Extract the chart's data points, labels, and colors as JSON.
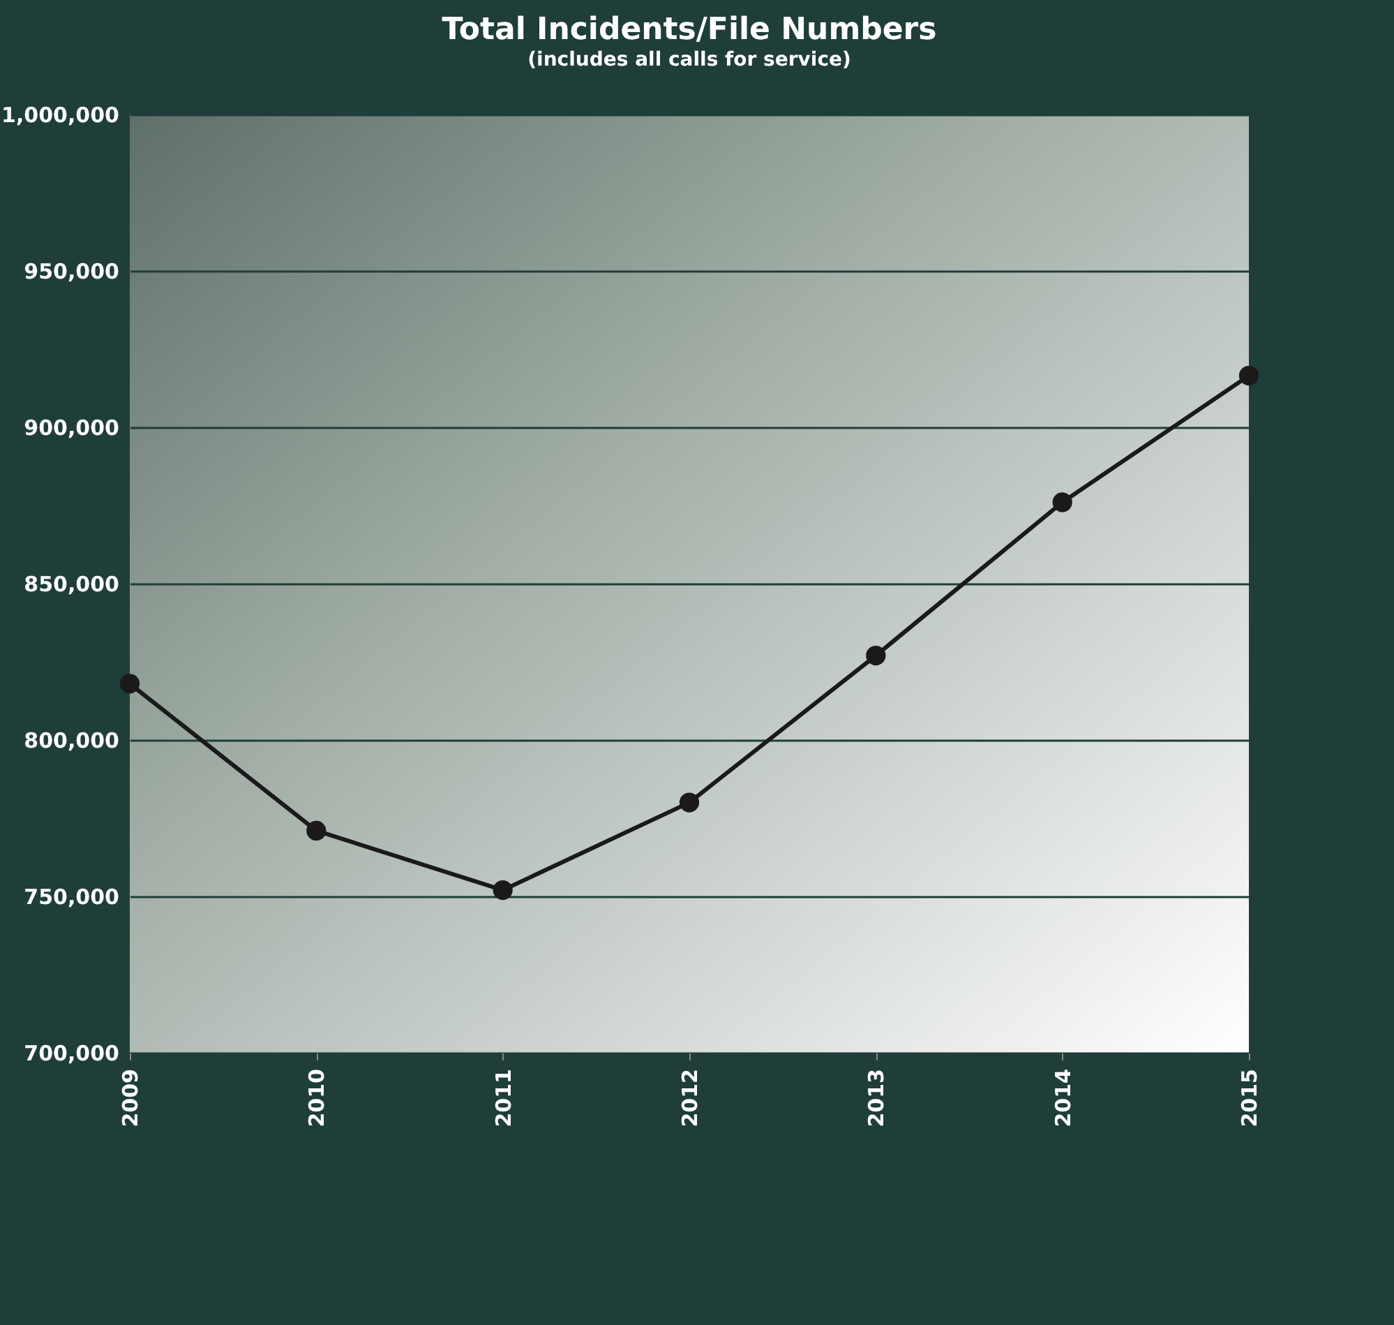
{
  "chart_data": {
    "type": "line",
    "title": "Total Incidents/File Numbers",
    "subtitle": "(includes all calls for service)",
    "categories": [
      "2009",
      "2010",
      "2011",
      "2012",
      "2013",
      "2014",
      "2015"
    ],
    "series": [
      {
        "color": "#1a1a1a",
        "values": [
          818000,
          771000,
          752000,
          780000,
          827000,
          876000,
          916500
        ]
      }
    ],
    "ylim": [
      700000,
      1000000
    ],
    "yticks": [
      {
        "value": 700000,
        "label": "700,000"
      },
      {
        "value": 750000,
        "label": "750,000"
      },
      {
        "value": 800000,
        "label": "800,000"
      },
      {
        "value": 850000,
        "label": "850,000"
      },
      {
        "value": 900000,
        "label": "900,000"
      },
      {
        "value": 950000,
        "label": "950,000"
      },
      {
        "value": 1000000,
        "label": "1,000,000"
      }
    ],
    "grid": "y",
    "marker": "circle",
    "legend": false
  }
}
